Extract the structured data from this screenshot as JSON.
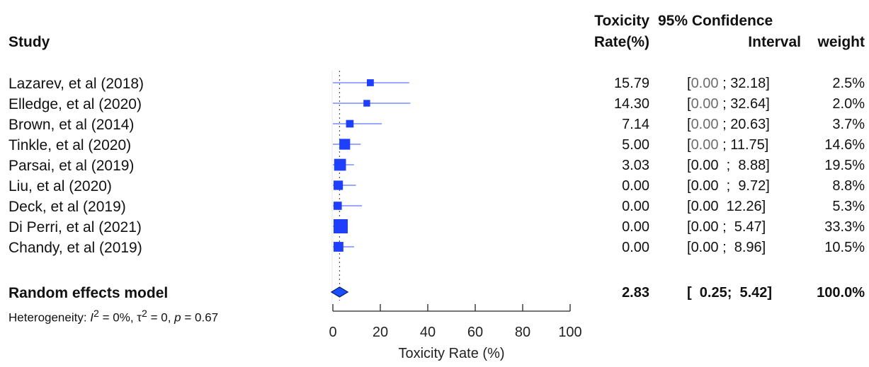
{
  "headers": {
    "study": "Study",
    "rate_line1": "Toxicity",
    "rate_line2": "Rate(%)",
    "ci_line1": "95% Confidence",
    "ci_line2": "Interval",
    "weight": "weight"
  },
  "studies": [
    {
      "name": "Lazarev, et al (2018)",
      "rate": "15.79",
      "ci_open": "[",
      "ci_lo": "0.00",
      "ci_sep": ";",
      "ci_hi": "32.18]",
      "weight": "2.5%"
    },
    {
      "name": "Elledge, et al (2020)",
      "rate": "14.30",
      "ci_open": "[",
      "ci_lo": "0.00",
      "ci_sep": ";",
      "ci_hi": "32.64]",
      "weight": "2.0%"
    },
    {
      "name": "Brown, et al (2014)",
      "rate": "7.14",
      "ci_open": "[",
      "ci_lo": "0.00",
      "ci_sep": ";",
      "ci_hi": "20.63]",
      "weight": "3.7%"
    },
    {
      "name": "Tinkle, et al (2020)",
      "rate": "5.00",
      "ci_open": "[",
      "ci_lo": "0.00",
      "ci_sep": ";",
      "ci_hi": "11.75]",
      "weight": "14.6%"
    },
    {
      "name": "Parsai, et al (2019)",
      "rate": "3.03",
      "ci_open": "[",
      "ci_lo": "0.00",
      "ci_sep": ";",
      "ci_hi": "8.88]",
      "weight": "19.5%"
    },
    {
      "name": "Liu, et al (2020)",
      "rate": "0.00",
      "ci_open": "[",
      "ci_lo": "0.00",
      "ci_sep": ";",
      "ci_hi": "9.72]",
      "weight": "8.8%"
    },
    {
      "name": "Deck, et al (2019)",
      "rate": "0.00",
      "ci_open": "[",
      "ci_lo": "0.00",
      "ci_sep": "",
      "ci_hi": "12.26]",
      "weight": "5.3%"
    },
    {
      "name": "Di Perri, et al (2021)",
      "rate": "0.00",
      "ci_open": "[",
      "ci_lo": "0.00",
      "ci_sep": ";",
      "ci_hi": "5.47]",
      "weight": "33.3%"
    },
    {
      "name": "Chandy, et al (2019)",
      "rate": "0.00",
      "ci_open": "[",
      "ci_lo": "0.00",
      "ci_sep": ";",
      "ci_hi": "8.96]",
      "weight": "10.5%"
    }
  ],
  "model": {
    "name": "Random effects model",
    "rate": "2.83",
    "ci": "[  0.25;  5.42]",
    "weight": "100.0%"
  },
  "heterogeneity": {
    "prefix": "Heterogeneity: ",
    "i2_sym": "I",
    "i2_sup": "2",
    "i2_val": " = 0%, ",
    "tau_sym": "τ",
    "tau_sup": "2",
    "tau_val": " = 0, ",
    "p_sym": "p",
    "p_val": " = 0.67"
  },
  "colors": {
    "marker": "#1f3fff",
    "ci_line": "#7a8cff",
    "diamond_fill": "#1a4fff",
    "diamond_stroke": "#0a1d6b",
    "ref_line": "#555555"
  },
  "chart_data": {
    "type": "forest",
    "xlabel": "Toxicity Rate (%)",
    "xlim": [
      0,
      100
    ],
    "xticks": [
      0,
      20,
      40,
      60,
      80,
      100
    ],
    "reference_line": 2.83,
    "studies": [
      {
        "name": "Lazarev, et al (2018)",
        "estimate": 15.79,
        "lower": 0.0,
        "upper": 32.18,
        "weight": 2.5
      },
      {
        "name": "Elledge, et al (2020)",
        "estimate": 14.3,
        "lower": 0.0,
        "upper": 32.64,
        "weight": 2.0
      },
      {
        "name": "Brown, et al (2014)",
        "estimate": 7.14,
        "lower": 0.0,
        "upper": 20.63,
        "weight": 3.7
      },
      {
        "name": "Tinkle, et al (2020)",
        "estimate": 5.0,
        "lower": 0.0,
        "upper": 11.75,
        "weight": 14.6
      },
      {
        "name": "Parsai, et al (2019)",
        "estimate": 3.03,
        "lower": 0.0,
        "upper": 8.88,
        "weight": 19.5
      },
      {
        "name": "Liu, et al (2020)",
        "estimate": 0.0,
        "lower": 0.0,
        "upper": 9.72,
        "weight": 8.8
      },
      {
        "name": "Deck, et al (2019)",
        "estimate": 0.0,
        "lower": 0.0,
        "upper": 12.26,
        "weight": 5.3
      },
      {
        "name": "Di Perri, et al (2021)",
        "estimate": 0.0,
        "lower": 0.0,
        "upper": 5.47,
        "weight": 33.3
      },
      {
        "name": "Chandy, et al (2019)",
        "estimate": 0.0,
        "lower": 0.0,
        "upper": 8.96,
        "weight": 10.5
      }
    ],
    "pooled": {
      "name": "Random effects model",
      "estimate": 2.83,
      "lower": 0.25,
      "upper": 5.42,
      "weight": 100.0
    }
  }
}
